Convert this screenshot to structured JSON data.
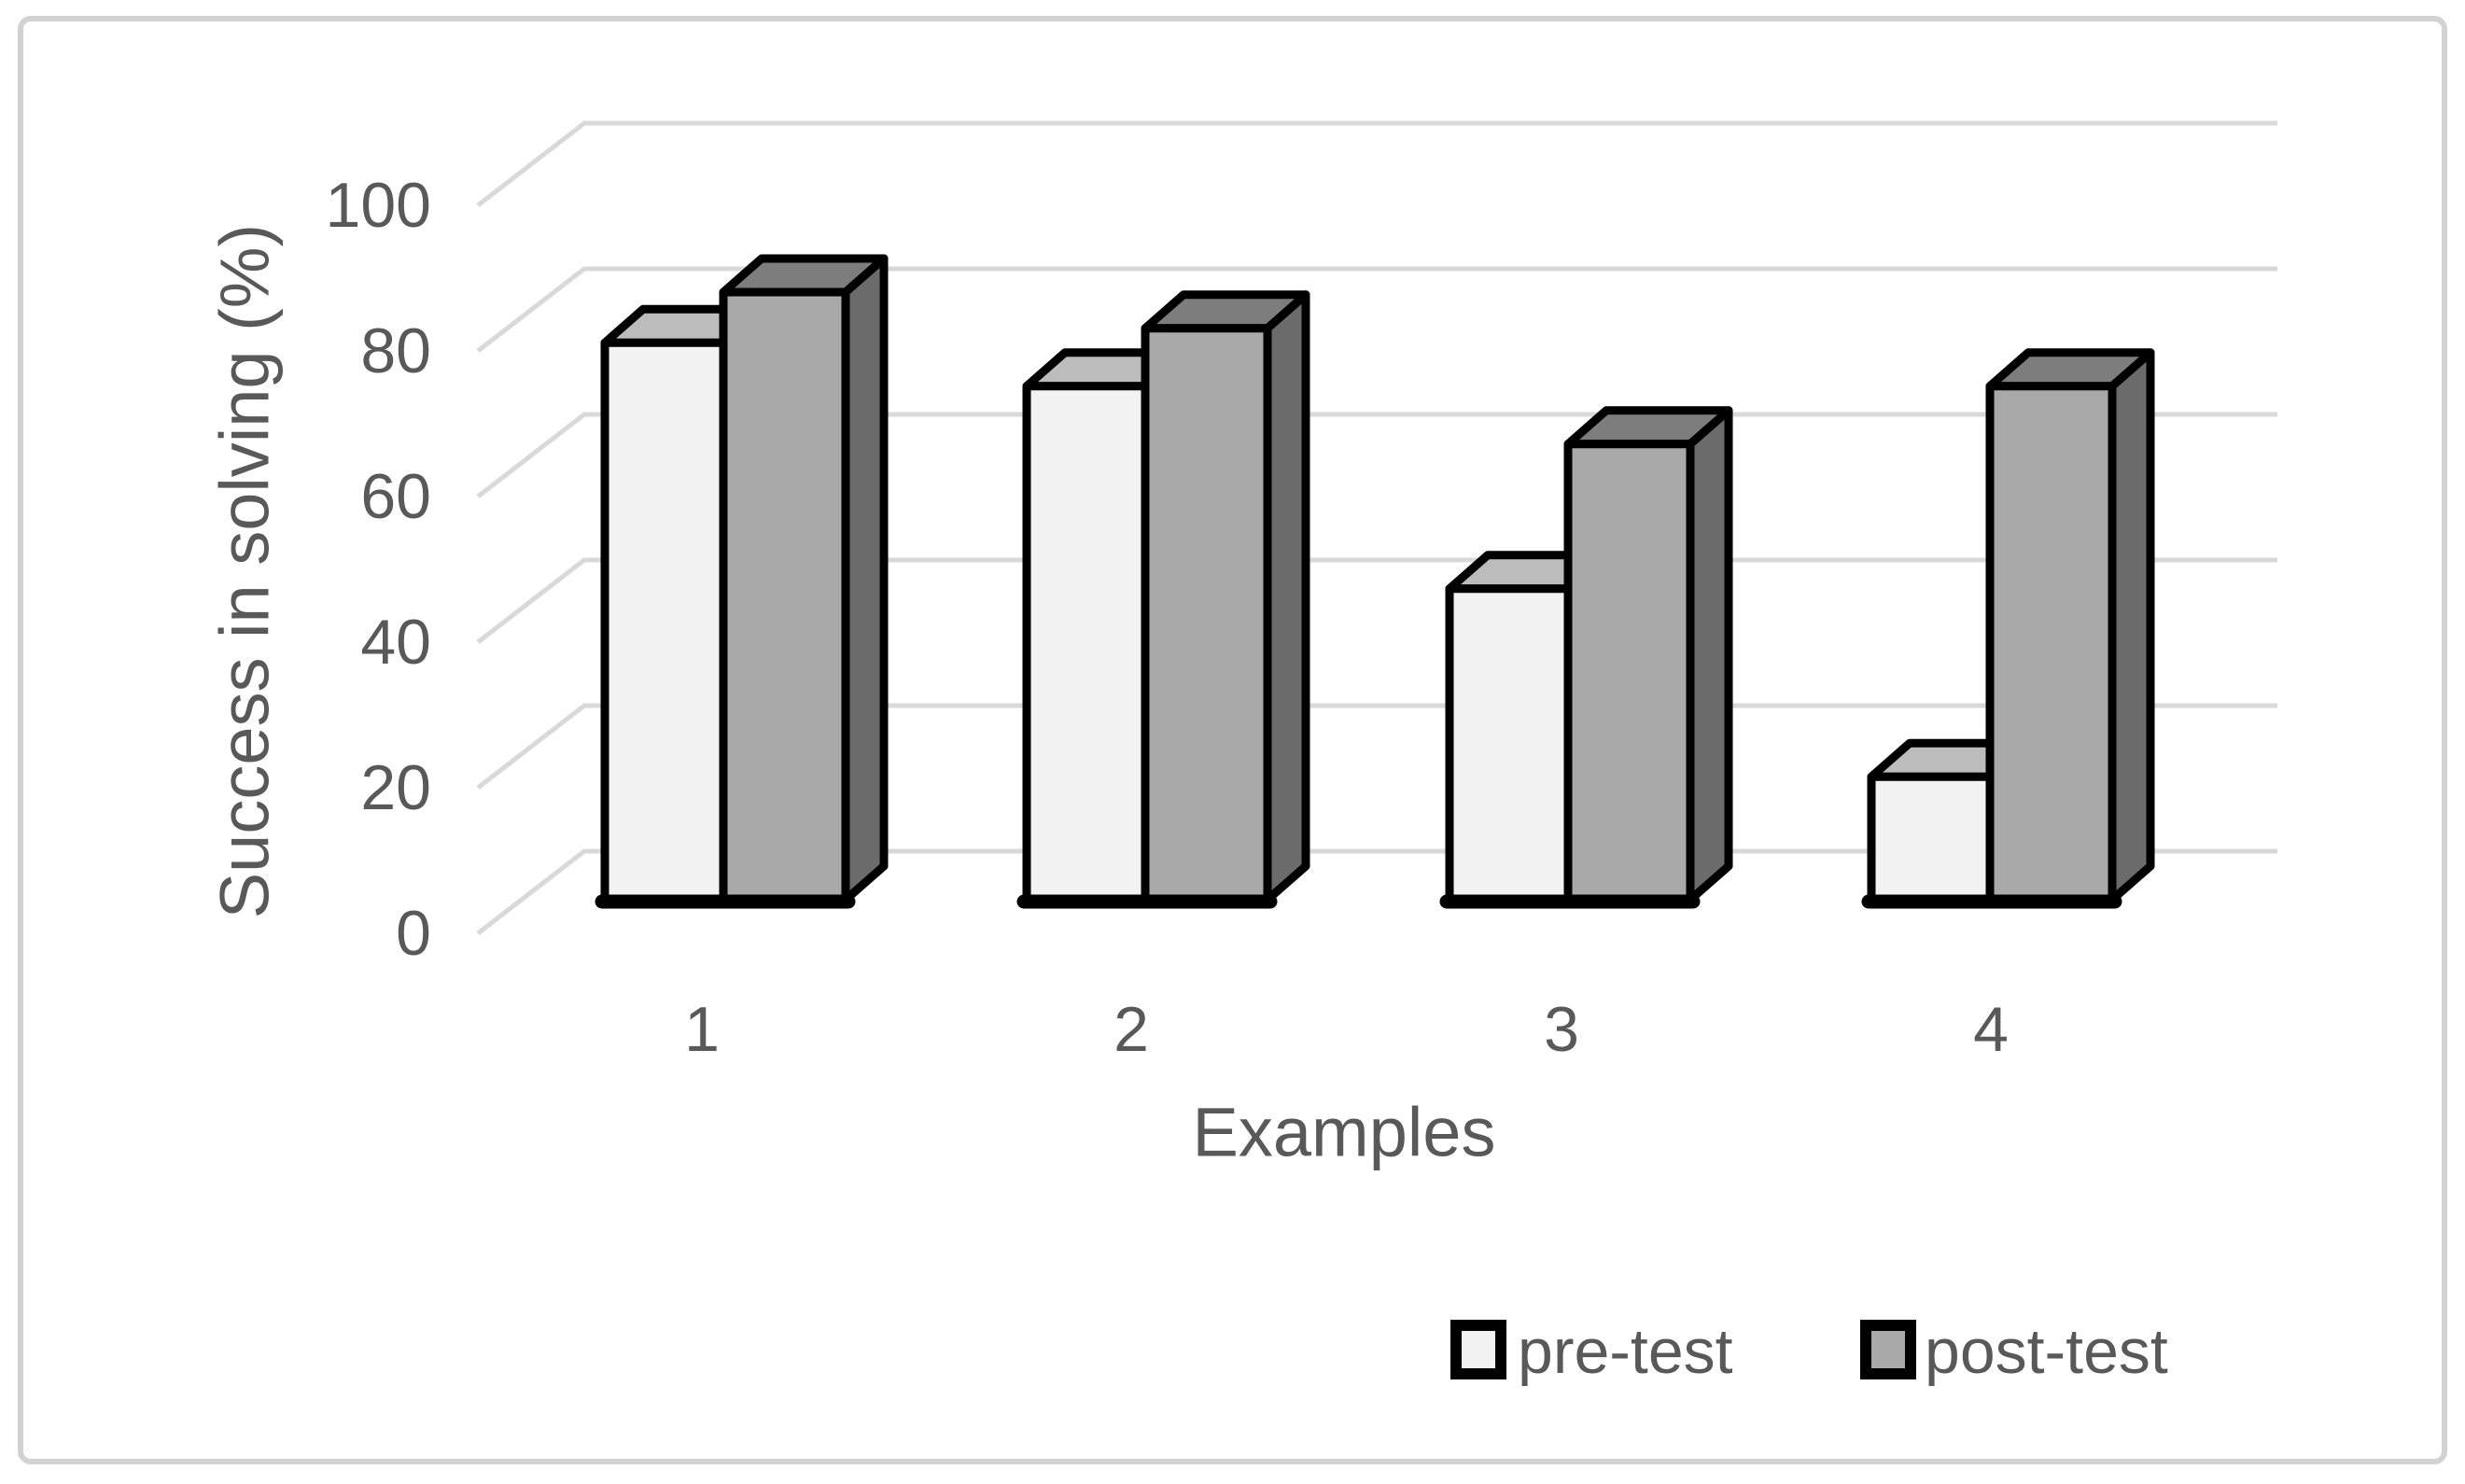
{
  "figure": {
    "background_color": "#ffffff",
    "border_color": "#d2d2d2"
  },
  "chart_data": {
    "type": "bar",
    "style": "3d-column",
    "title": "",
    "categories": [
      "1",
      "2",
      "3",
      "4"
    ],
    "series": [
      {
        "name": "pre-test",
        "values": [
          77,
          71,
          43,
          17
        ]
      },
      {
        "name": "post-test",
        "values": [
          84,
          79,
          63,
          71
        ]
      }
    ],
    "xlabel": "Examples",
    "ylabel": "Success in solving (%)",
    "ylim": [
      0,
      100
    ],
    "y_ticks": [
      0,
      20,
      40,
      60,
      80,
      100
    ],
    "grid": true,
    "legend_position": "bottom-right",
    "colors": {
      "pre_front": "#f2f2f2",
      "pre_top": "#bcbcbc",
      "post_front": "#a9a9a9",
      "post_top": "#7d7d7d",
      "post_side": "#6b6b6b",
      "outline": "#000000",
      "gridline": "#d9d9d9",
      "text": "#595959"
    }
  }
}
